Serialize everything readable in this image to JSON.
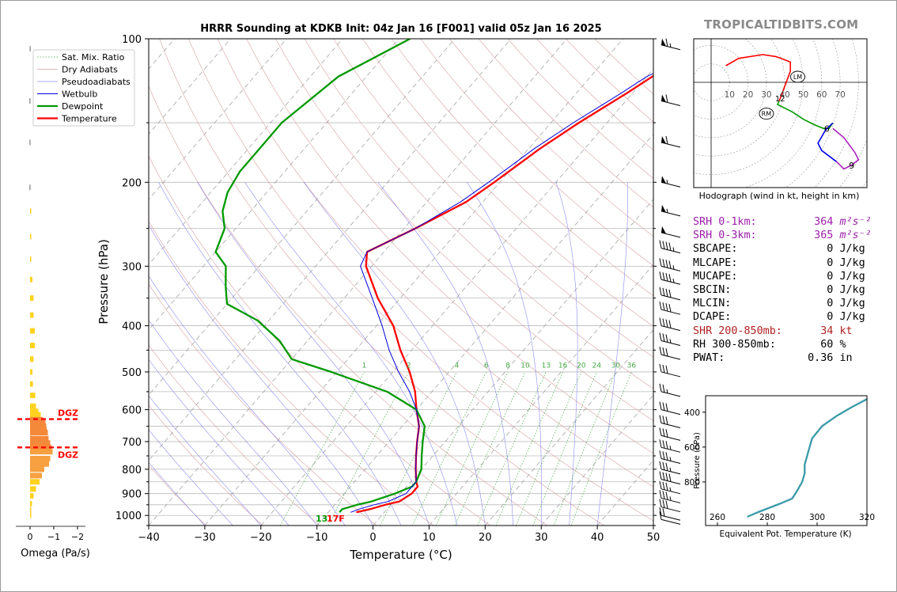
{
  "site": "TROPICALTIDBITS.COM",
  "colors": {
    "temperature": "#ff0000",
    "dewpoint": "#009900",
    "wetbulb": "#0000dd",
    "dgz": "#ff0000",
    "srh": "#9b1fa8",
    "shr": "#b02222",
    "theta_e": "#3a9aa8"
  },
  "skewt": {
    "title": "HRRR Sounding at KDKB Init: 04z Jan 16 [F001] valid 05z Jan 16 2025",
    "xlabel": "Temperature (°C)",
    "ylabel": "Pressure (hPa)",
    "surface_label": "13",
    "surface_label2": "17F",
    "legend": [
      "Sat. Mix. Ratio",
      "Dry Adiabats",
      "Pseudoadiabats",
      "Wetbulb",
      "Dewpoint",
      "Temperature"
    ],
    "mixing_ratio_labels": [
      "1",
      "2",
      "4",
      "6",
      "8",
      "10",
      "13",
      "16",
      "20",
      "24",
      "30",
      "36"
    ]
  },
  "omega": {
    "xlabel": "Omega (Pa/s)",
    "tick_labels": [
      "0",
      "−1",
      "−2"
    ],
    "dgz_label_top": "DGZ",
    "dgz_label_bottom": "DGZ"
  },
  "hodograph": {
    "caption": "Hodograph (wind in kt, height in km)",
    "ring_labels": [
      "10",
      "20",
      "30",
      "40",
      "50",
      "60",
      "70"
    ],
    "lm": "LM",
    "rm": "RM",
    "km_labels": [
      "1",
      "2",
      "6",
      "9"
    ]
  },
  "stats": [
    {
      "label": "SRH 0-1km:",
      "value": "364",
      "unit": "m²s⁻²",
      "color": "srh"
    },
    {
      "label": "SRH 0-3km:",
      "value": "365",
      "unit": "m²s⁻²",
      "color": "srh"
    },
    {
      "label": "SBCAPE:",
      "value": "0",
      "unit": "J/kg",
      "color": ""
    },
    {
      "label": "MLCAPE:",
      "value": "0",
      "unit": "J/kg",
      "color": ""
    },
    {
      "label": "MUCAPE:",
      "value": "0",
      "unit": "J/kg",
      "color": ""
    },
    {
      "label": "SBCIN:",
      "value": "0",
      "unit": "J/kg",
      "color": ""
    },
    {
      "label": "MLCIN:",
      "value": "0",
      "unit": "J/kg",
      "color": ""
    },
    {
      "label": "DCAPE:",
      "value": "0",
      "unit": "J/kg",
      "color": ""
    },
    {
      "label": "SHR 200-850mb:",
      "value": "34",
      "unit": "kt",
      "color": "shr"
    },
    {
      "label": "RH 300-850mb:",
      "value": "60",
      "unit": "%",
      "color": ""
    },
    {
      "label": "PWAT:",
      "value": "0.36",
      "unit": "in",
      "color": ""
    }
  ],
  "chart_data": [
    {
      "type": "line",
      "title": "HRRR Sounding at KDKB Init: 04z Jan 16 [F001] valid 05z Jan 16 2025",
      "xlabel": "Temperature (°C)",
      "ylabel": "Pressure (hPa)",
      "xlim": [
        -40,
        50
      ],
      "ylim": [
        1050,
        100
      ],
      "y_scale": "log",
      "x_ticks": [
        -40,
        -30,
        -20,
        -10,
        0,
        10,
        20,
        30,
        40,
        50
      ],
      "y_ticks": [
        100,
        200,
        300,
        400,
        500,
        600,
        700,
        800,
        900,
        1000
      ],
      "legend_position": "top-left",
      "series": [
        {
          "name": "Temperature",
          "p": [
            985,
            970,
            950,
            935,
            900,
            870,
            850,
            800,
            750,
            700,
            650,
            600,
            550,
            500,
            450,
            400,
            350,
            300,
            280,
            250,
            220,
            200,
            170,
            150,
            130,
            120,
            110,
            100
          ],
          "t": [
            -5,
            -3,
            -1,
            1,
            2,
            2,
            1,
            -1,
            -3,
            -5,
            -7,
            -10,
            -13,
            -17,
            -22,
            -27,
            -34,
            -41,
            -43,
            -38,
            -33,
            -31,
            -28,
            -25,
            -21,
            -19,
            -15,
            -11
          ]
        },
        {
          "name": "Dewpoint",
          "p": [
            985,
            970,
            950,
            935,
            900,
            870,
            850,
            800,
            750,
            700,
            650,
            600,
            550,
            500,
            470,
            430,
            390,
            360,
            330,
            300,
            280,
            250,
            230,
            210,
            190,
            170,
            150,
            120,
            100
          ],
          "t": [
            -8,
            -8,
            -6,
            -4,
            -1,
            1,
            1,
            0,
            -2,
            -4,
            -6,
            -10,
            -18,
            -31,
            -40,
            -45,
            -52,
            -60,
            -63,
            -66,
            -70,
            -72,
            -75,
            -77,
            -78,
            -78,
            -78,
            -75,
            -68
          ]
        },
        {
          "name": "Wetbulb",
          "p": [
            985,
            970,
            950,
            935,
            900,
            870,
            850,
            800,
            750,
            700,
            650,
            600,
            550,
            500,
            450,
            400,
            350,
            300,
            280,
            250,
            220,
            200,
            170,
            150,
            130,
            120,
            110,
            100
          ],
          "t": [
            -6,
            -5,
            -3,
            -1,
            1,
            1,
            1,
            -1,
            -3,
            -5,
            -7,
            -10,
            -14,
            -19,
            -24,
            -29,
            -35,
            -42,
            -43,
            -38,
            -34,
            -32,
            -29,
            -26,
            -22,
            -20,
            -16,
            -12
          ]
        }
      ]
    },
    {
      "type": "bar",
      "title": "",
      "xlabel": "Omega (Pa/s)",
      "ylabel": "",
      "xlim": [
        0.3,
        -2.3
      ],
      "ylim": [
        1050,
        100
      ],
      "y_scale": "log",
      "dgz_pressure": [
        628,
        720
      ],
      "pressure": [
        105,
        135,
        165,
        205,
        230,
        260,
        290,
        320,
        350,
        380,
        410,
        440,
        470,
        500,
        530,
        560,
        590,
        605,
        615,
        630,
        640,
        650,
        660,
        670,
        690,
        705,
        720,
        735,
        760,
        780,
        800,
        825,
        850,
        880,
        910,
        945,
        975,
        1000
      ],
      "omega": [
        0.02,
        0.03,
        0.03,
        0.03,
        -0.02,
        -0.05,
        -0.05,
        -0.1,
        -0.15,
        -0.15,
        -0.2,
        -0.2,
        -0.15,
        -0.1,
        -0.12,
        -0.22,
        -0.25,
        -0.35,
        -0.45,
        -0.55,
        -0.65,
        -0.68,
        -0.7,
        -0.75,
        -0.78,
        -0.85,
        -0.9,
        -0.95,
        -0.85,
        -0.8,
        -0.6,
        -0.5,
        -0.4,
        -0.25,
        -0.15,
        -0.08,
        -0.05,
        -0.03
      ]
    },
    {
      "type": "line",
      "title": "",
      "xlabel": "",
      "ylabel": "",
      "axis_ticks": [
        10,
        20,
        30,
        40,
        50,
        60,
        70
      ],
      "km_marks": {
        "1": [
          36,
          -12
        ],
        "2": [
          37,
          -12
        ],
        "6": [
          63,
          -25
        ],
        "9": [
          76,
          -45
        ]
      },
      "lm": [
        47,
        3
      ],
      "rm": [
        30,
        -17
      ],
      "trace": [
        [
          8,
          9
        ],
        [
          15,
          13
        ],
        [
          28,
          15
        ],
        [
          35,
          14
        ],
        [
          38,
          13
        ],
        [
          43,
          11
        ],
        [
          43,
          6
        ],
        [
          40,
          -2
        ],
        [
          37,
          -10
        ],
        [
          36,
          -12
        ],
        [
          38,
          -13
        ],
        [
          44,
          -16
        ],
        [
          50,
          -20
        ],
        [
          56,
          -23
        ],
        [
          61,
          -25
        ],
        [
          64,
          -25
        ],
        [
          66,
          -22
        ],
        [
          62,
          -26
        ],
        [
          58,
          -33
        ],
        [
          60,
          -37
        ],
        [
          68,
          -43
        ],
        [
          72,
          -47
        ],
        [
          76,
          -45
        ],
        [
          80,
          -42
        ],
        [
          78,
          -38
        ],
        [
          72,
          -30
        ],
        [
          66,
          -25
        ]
      ]
    },
    {
      "type": "line",
      "title": "",
      "xlabel": "Equivalent Pot. Temperature (K)",
      "ylabel": "Pressure (hPa)",
      "xlim": [
        260,
        320
      ],
      "ylim": [
        1000,
        300
      ],
      "x_ticks": [
        260,
        280,
        300,
        320
      ],
      "y_ticks": [
        400,
        600,
        800
      ],
      "theta_e": [
        272,
        276,
        285,
        290,
        292,
        294,
        295,
        295,
        296,
        297,
        298,
        302,
        308,
        314,
        320
      ],
      "p": [
        1000,
        975,
        925,
        895,
        850,
        800,
        750,
        700,
        650,
        600,
        550,
        480,
        420,
        370,
        325
      ]
    }
  ]
}
